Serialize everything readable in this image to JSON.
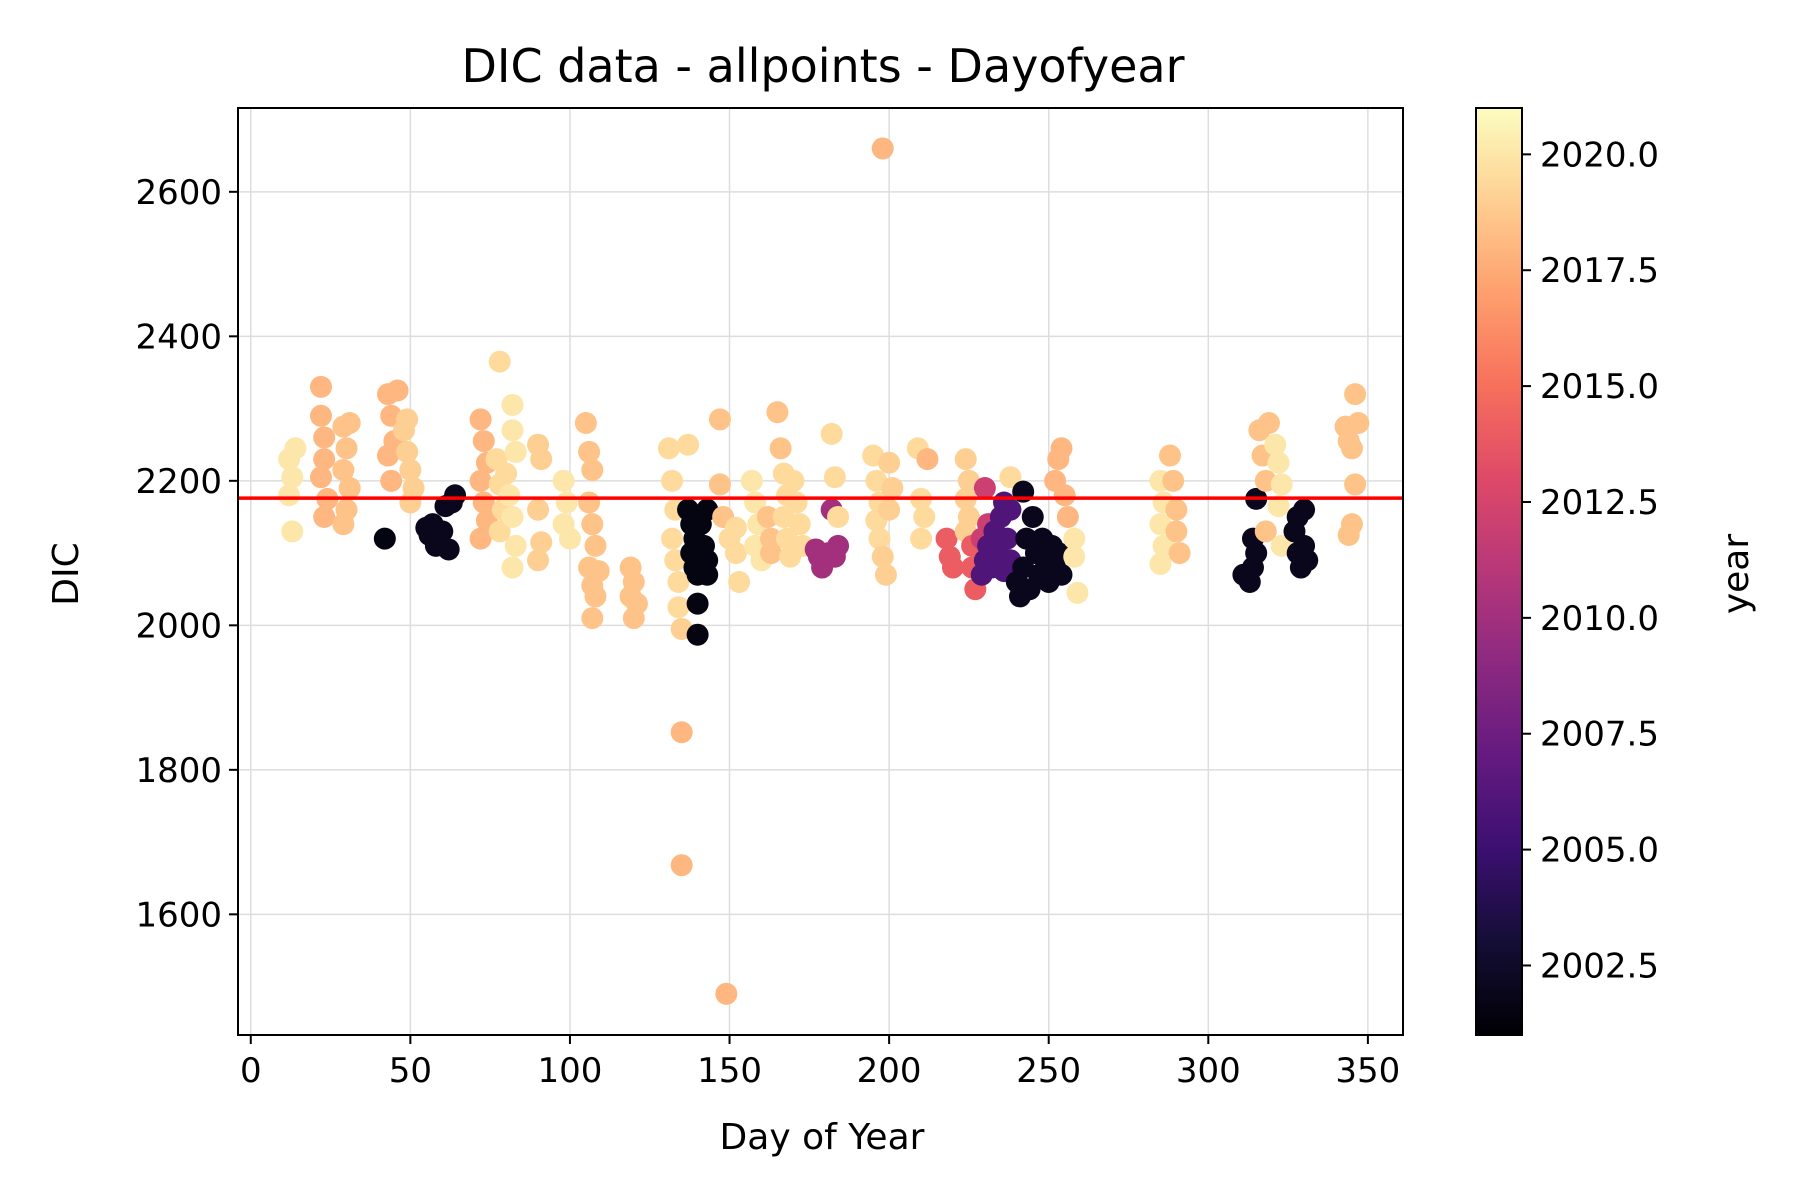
{
  "chart_data": {
    "type": "scatter",
    "title": "DIC data - allpoints - Dayofyear",
    "xlabel": "Day of Year",
    "ylabel": "DIC",
    "xlim": [
      -4,
      361
    ],
    "ylim": [
      1433,
      2716
    ],
    "xticks": [
      0,
      50,
      100,
      150,
      200,
      250,
      300,
      350
    ],
    "yticks": [
      1600,
      1800,
      2000,
      2200,
      2400,
      2600
    ],
    "grid": true,
    "reference_line": {
      "y": 2176,
      "color": "#ff0000"
    },
    "colorbar": {
      "label": "year",
      "colormap": "magma",
      "range": [
        2001,
        2021
      ],
      "ticks": [
        "2002.5",
        "2005.0",
        "2007.5",
        "2010.0",
        "2012.5",
        "2015.0",
        "2017.5",
        "2020.0"
      ]
    },
    "points": [
      {
        "x": 12,
        "y": 2230,
        "c": 2020
      },
      {
        "x": 12,
        "y": 2180,
        "c": 2020
      },
      {
        "x": 13,
        "y": 2130,
        "c": 2020
      },
      {
        "x": 14,
        "y": 2245,
        "c": 2020
      },
      {
        "x": 13,
        "y": 2205,
        "c": 2020
      },
      {
        "x": 22,
        "y": 2330,
        "c": 2018
      },
      {
        "x": 22,
        "y": 2290,
        "c": 2018
      },
      {
        "x": 23,
        "y": 2260,
        "c": 2018
      },
      {
        "x": 23,
        "y": 2230,
        "c": 2018
      },
      {
        "x": 22,
        "y": 2205,
        "c": 2018
      },
      {
        "x": 23,
        "y": 2150,
        "c": 2018
      },
      {
        "x": 24,
        "y": 2175,
        "c": 2018
      },
      {
        "x": 29,
        "y": 2275,
        "c": 2018.5
      },
      {
        "x": 30,
        "y": 2245,
        "c": 2018.5
      },
      {
        "x": 29,
        "y": 2215,
        "c": 2018.5
      },
      {
        "x": 31,
        "y": 2190,
        "c": 2018.5
      },
      {
        "x": 30,
        "y": 2160,
        "c": 2018.5
      },
      {
        "x": 29,
        "y": 2140,
        "c": 2018.5
      },
      {
        "x": 31,
        "y": 2280,
        "c": 2018.5
      },
      {
        "x": 42,
        "y": 2120,
        "c": 2001.5
      },
      {
        "x": 43,
        "y": 2320,
        "c": 2018
      },
      {
        "x": 44,
        "y": 2290,
        "c": 2018
      },
      {
        "x": 45,
        "y": 2255,
        "c": 2018
      },
      {
        "x": 43,
        "y": 2235,
        "c": 2018
      },
      {
        "x": 46,
        "y": 2325,
        "c": 2018
      },
      {
        "x": 44,
        "y": 2200,
        "c": 2018
      },
      {
        "x": 48,
        "y": 2270,
        "c": 2019
      },
      {
        "x": 49,
        "y": 2240,
        "c": 2019
      },
      {
        "x": 50,
        "y": 2215,
        "c": 2019
      },
      {
        "x": 49,
        "y": 2285,
        "c": 2019
      },
      {
        "x": 51,
        "y": 2190,
        "c": 2019
      },
      {
        "x": 50,
        "y": 2170,
        "c": 2019
      },
      {
        "x": 55,
        "y": 2135,
        "c": 2002
      },
      {
        "x": 56,
        "y": 2125,
        "c": 2002
      },
      {
        "x": 57,
        "y": 2140,
        "c": 2002
      },
      {
        "x": 58,
        "y": 2110,
        "c": 2002
      },
      {
        "x": 60,
        "y": 2130,
        "c": 2002
      },
      {
        "x": 61,
        "y": 2165,
        "c": 2002
      },
      {
        "x": 62,
        "y": 2105,
        "c": 2002
      },
      {
        "x": 63,
        "y": 2170,
        "c": 2002
      },
      {
        "x": 64,
        "y": 2180,
        "c": 2002
      },
      {
        "x": 72,
        "y": 2285,
        "c": 2018
      },
      {
        "x": 73,
        "y": 2255,
        "c": 2018
      },
      {
        "x": 74,
        "y": 2225,
        "c": 2018
      },
      {
        "x": 72,
        "y": 2200,
        "c": 2018
      },
      {
        "x": 73,
        "y": 2170,
        "c": 2018
      },
      {
        "x": 74,
        "y": 2145,
        "c": 2018
      },
      {
        "x": 72,
        "y": 2120,
        "c": 2018
      },
      {
        "x": 78,
        "y": 2365,
        "c": 2019.5
      },
      {
        "x": 77,
        "y": 2230,
        "c": 2019.5
      },
      {
        "x": 78,
        "y": 2195,
        "c": 2019.5
      },
      {
        "x": 79,
        "y": 2160,
        "c": 2019.5
      },
      {
        "x": 78,
        "y": 2130,
        "c": 2019.5
      },
      {
        "x": 80,
        "y": 2210,
        "c": 2019.5
      },
      {
        "x": 82,
        "y": 2305,
        "c": 2020
      },
      {
        "x": 82,
        "y": 2270,
        "c": 2020
      },
      {
        "x": 83,
        "y": 2240,
        "c": 2020
      },
      {
        "x": 81,
        "y": 2180,
        "c": 2020
      },
      {
        "x": 82,
        "y": 2150,
        "c": 2020
      },
      {
        "x": 83,
        "y": 2110,
        "c": 2020
      },
      {
        "x": 82,
        "y": 2080,
        "c": 2020
      },
      {
        "x": 90,
        "y": 2250,
        "c": 2019
      },
      {
        "x": 91,
        "y": 2230,
        "c": 2019
      },
      {
        "x": 90,
        "y": 2160,
        "c": 2019
      },
      {
        "x": 91,
        "y": 2115,
        "c": 2019
      },
      {
        "x": 90,
        "y": 2090,
        "c": 2019
      },
      {
        "x": 98,
        "y": 2200,
        "c": 2020
      },
      {
        "x": 99,
        "y": 2170,
        "c": 2020
      },
      {
        "x": 98,
        "y": 2140,
        "c": 2020
      },
      {
        "x": 100,
        "y": 2120,
        "c": 2020
      },
      {
        "x": 105,
        "y": 2280,
        "c": 2018.5
      },
      {
        "x": 106,
        "y": 2240,
        "c": 2018.5
      },
      {
        "x": 107,
        "y": 2215,
        "c": 2018.5
      },
      {
        "x": 106,
        "y": 2170,
        "c": 2018.5
      },
      {
        "x": 107,
        "y": 2140,
        "c": 2018.5
      },
      {
        "x": 108,
        "y": 2110,
        "c": 2018.5
      },
      {
        "x": 106,
        "y": 2080,
        "c": 2018.5
      },
      {
        "x": 107,
        "y": 2055,
        "c": 2018.5
      },
      {
        "x": 108,
        "y": 2040,
        "c": 2018.5
      },
      {
        "x": 107,
        "y": 2010,
        "c": 2018.5
      },
      {
        "x": 109,
        "y": 2075,
        "c": 2018.5
      },
      {
        "x": 119,
        "y": 2080,
        "c": 2018.5
      },
      {
        "x": 120,
        "y": 2060,
        "c": 2018.5
      },
      {
        "x": 119,
        "y": 2040,
        "c": 2018.5
      },
      {
        "x": 120,
        "y": 2010,
        "c": 2018.5
      },
      {
        "x": 121,
        "y": 2030,
        "c": 2018.5
      },
      {
        "x": 131,
        "y": 2245,
        "c": 2019.5
      },
      {
        "x": 132,
        "y": 2200,
        "c": 2019.5
      },
      {
        "x": 133,
        "y": 2160,
        "c": 2019.5
      },
      {
        "x": 132,
        "y": 2120,
        "c": 2019.5
      },
      {
        "x": 133,
        "y": 2090,
        "c": 2019.5
      },
      {
        "x": 134,
        "y": 2060,
        "c": 2019.5
      },
      {
        "x": 134,
        "y": 2025,
        "c": 2019.5
      },
      {
        "x": 135,
        "y": 1995,
        "c": 2019
      },
      {
        "x": 137,
        "y": 2250,
        "c": 2019.5
      },
      {
        "x": 135,
        "y": 1852,
        "c": 2018
      },
      {
        "x": 135,
        "y": 1668,
        "c": 2018
      },
      {
        "x": 137,
        "y": 2160,
        "c": 2001.5
      },
      {
        "x": 138,
        "y": 2140,
        "c": 2001.5
      },
      {
        "x": 139,
        "y": 2120,
        "c": 2001.5
      },
      {
        "x": 138,
        "y": 2100,
        "c": 2001.5
      },
      {
        "x": 139,
        "y": 2080,
        "c": 2001.5
      },
      {
        "x": 140,
        "y": 2070,
        "c": 2001.5
      },
      {
        "x": 140,
        "y": 2030,
        "c": 2001.5
      },
      {
        "x": 140,
        "y": 1987,
        "c": 2001.5
      },
      {
        "x": 143,
        "y": 2160,
        "c": 2001.5
      },
      {
        "x": 142,
        "y": 2110,
        "c": 2001.5
      },
      {
        "x": 143,
        "y": 2090,
        "c": 2001.5
      },
      {
        "x": 141,
        "y": 2140,
        "c": 2001.5
      },
      {
        "x": 143,
        "y": 2070,
        "c": 2001.5
      },
      {
        "x": 147,
        "y": 2285,
        "c": 2018.5
      },
      {
        "x": 147,
        "y": 2195,
        "c": 2018.5
      },
      {
        "x": 148,
        "y": 2150,
        "c": 2018.5
      },
      {
        "x": 149,
        "y": 1490,
        "c": 2018
      },
      {
        "x": 150,
        "y": 2120,
        "c": 2019.5
      },
      {
        "x": 152,
        "y": 2100,
        "c": 2019.5
      },
      {
        "x": 153,
        "y": 2060,
        "c": 2019.5
      },
      {
        "x": 152,
        "y": 2135,
        "c": 2019.5
      },
      {
        "x": 157,
        "y": 2200,
        "c": 2020
      },
      {
        "x": 158,
        "y": 2170,
        "c": 2020
      },
      {
        "x": 159,
        "y": 2140,
        "c": 2020
      },
      {
        "x": 158,
        "y": 2110,
        "c": 2020
      },
      {
        "x": 160,
        "y": 2090,
        "c": 2020
      },
      {
        "x": 162,
        "y": 2150,
        "c": 2018.5
      },
      {
        "x": 163,
        "y": 2120,
        "c": 2018.5
      },
      {
        "x": 163,
        "y": 2100,
        "c": 2018.5
      },
      {
        "x": 165,
        "y": 2295,
        "c": 2018.5
      },
      {
        "x": 166,
        "y": 2245,
        "c": 2018.5
      },
      {
        "x": 167,
        "y": 2210,
        "c": 2019.5
      },
      {
        "x": 168,
        "y": 2180,
        "c": 2019.5
      },
      {
        "x": 167,
        "y": 2150,
        "c": 2019.5
      },
      {
        "x": 168,
        "y": 2120,
        "c": 2019.5
      },
      {
        "x": 169,
        "y": 2095,
        "c": 2019.5
      },
      {
        "x": 170,
        "y": 2200,
        "c": 2019.5
      },
      {
        "x": 171,
        "y": 2170,
        "c": 2019.5
      },
      {
        "x": 172,
        "y": 2140,
        "c": 2019.5
      },
      {
        "x": 173,
        "y": 2110,
        "c": 2019.5
      },
      {
        "x": 177,
        "y": 2105,
        "c": 2010
      },
      {
        "x": 178,
        "y": 2095,
        "c": 2010
      },
      {
        "x": 179,
        "y": 2080,
        "c": 2010
      },
      {
        "x": 181,
        "y": 2100,
        "c": 2010
      },
      {
        "x": 183,
        "y": 2095,
        "c": 2010
      },
      {
        "x": 184,
        "y": 2110,
        "c": 2010
      },
      {
        "x": 182,
        "y": 2160,
        "c": 2010
      },
      {
        "x": 182,
        "y": 2265,
        "c": 2019.5
      },
      {
        "x": 183,
        "y": 2205,
        "c": 2019.5
      },
      {
        "x": 184,
        "y": 2150,
        "c": 2019.5
      },
      {
        "x": 195,
        "y": 2235,
        "c": 2019.5
      },
      {
        "x": 196,
        "y": 2200,
        "c": 2019.5
      },
      {
        "x": 197,
        "y": 2170,
        "c": 2019.5
      },
      {
        "x": 196,
        "y": 2145,
        "c": 2019.5
      },
      {
        "x": 197,
        "y": 2120,
        "c": 2019.5
      },
      {
        "x": 198,
        "y": 2095,
        "c": 2019
      },
      {
        "x": 199,
        "y": 2070,
        "c": 2019
      },
      {
        "x": 198,
        "y": 2660,
        "c": 2018
      },
      {
        "x": 200,
        "y": 2225,
        "c": 2019
      },
      {
        "x": 201,
        "y": 2190,
        "c": 2019
      },
      {
        "x": 200,
        "y": 2160,
        "c": 2019
      },
      {
        "x": 209,
        "y": 2245,
        "c": 2019.5
      },
      {
        "x": 210,
        "y": 2175,
        "c": 2019.5
      },
      {
        "x": 211,
        "y": 2150,
        "c": 2019.5
      },
      {
        "x": 210,
        "y": 2120,
        "c": 2019.5
      },
      {
        "x": 212,
        "y": 2230,
        "c": 2018
      },
      {
        "x": 218,
        "y": 2120,
        "c": 2014
      },
      {
        "x": 219,
        "y": 2095,
        "c": 2014
      },
      {
        "x": 220,
        "y": 2080,
        "c": 2014
      },
      {
        "x": 224,
        "y": 2230,
        "c": 2019
      },
      {
        "x": 225,
        "y": 2200,
        "c": 2019
      },
      {
        "x": 224,
        "y": 2175,
        "c": 2019
      },
      {
        "x": 225,
        "y": 2150,
        "c": 2019
      },
      {
        "x": 224,
        "y": 2130,
        "c": 2019
      },
      {
        "x": 226,
        "y": 2110,
        "c": 2014
      },
      {
        "x": 226,
        "y": 2080,
        "c": 2014
      },
      {
        "x": 227,
        "y": 2050,
        "c": 2014
      },
      {
        "x": 229,
        "y": 2120,
        "c": 2012
      },
      {
        "x": 230,
        "y": 2190,
        "c": 2012
      },
      {
        "x": 231,
        "y": 2140,
        "c": 2012
      },
      {
        "x": 229,
        "y": 2070,
        "c": 2006
      },
      {
        "x": 230,
        "y": 2090,
        "c": 2006
      },
      {
        "x": 231,
        "y": 2110,
        "c": 2006
      },
      {
        "x": 232,
        "y": 2080,
        "c": 2006
      },
      {
        "x": 233,
        "y": 2130,
        "c": 2006
      },
      {
        "x": 234,
        "y": 2100,
        "c": 2006
      },
      {
        "x": 235,
        "y": 2150,
        "c": 2006
      },
      {
        "x": 236,
        "y": 2075,
        "c": 2006
      },
      {
        "x": 236,
        "y": 2170,
        "c": 2006
      },
      {
        "x": 237,
        "y": 2120,
        "c": 2006
      },
      {
        "x": 238,
        "y": 2090,
        "c": 2006
      },
      {
        "x": 238,
        "y": 2160,
        "c": 2006
      },
      {
        "x": 238,
        "y": 2205,
        "c": 2019.5
      },
      {
        "x": 240,
        "y": 2060,
        "c": 2002
      },
      {
        "x": 241,
        "y": 2040,
        "c": 2002
      },
      {
        "x": 242,
        "y": 2080,
        "c": 2002
      },
      {
        "x": 242,
        "y": 2185,
        "c": 2002
      },
      {
        "x": 243,
        "y": 2120,
        "c": 2002
      },
      {
        "x": 244,
        "y": 2050,
        "c": 2002
      },
      {
        "x": 245,
        "y": 2150,
        "c": 2002
      },
      {
        "x": 246,
        "y": 2100,
        "c": 2002
      },
      {
        "x": 247,
        "y": 2070,
        "c": 2002
      },
      {
        "x": 248,
        "y": 2120,
        "c": 2002
      },
      {
        "x": 249,
        "y": 2090,
        "c": 2002
      },
      {
        "x": 250,
        "y": 2060,
        "c": 2002
      },
      {
        "x": 251,
        "y": 2110,
        "c": 2002
      },
      {
        "x": 252,
        "y": 2080,
        "c": 2002
      },
      {
        "x": 253,
        "y": 2100,
        "c": 2002
      },
      {
        "x": 254,
        "y": 2070,
        "c": 2002
      },
      {
        "x": 252,
        "y": 2200,
        "c": 2018
      },
      {
        "x": 253,
        "y": 2230,
        "c": 2018
      },
      {
        "x": 254,
        "y": 2245,
        "c": 2018
      },
      {
        "x": 255,
        "y": 2180,
        "c": 2018
      },
      {
        "x": 256,
        "y": 2150,
        "c": 2018
      },
      {
        "x": 258,
        "y": 2120,
        "c": 2020
      },
      {
        "x": 258,
        "y": 2095,
        "c": 2020
      },
      {
        "x": 259,
        "y": 2045,
        "c": 2020
      },
      {
        "x": 285,
        "y": 2200,
        "c": 2020
      },
      {
        "x": 286,
        "y": 2170,
        "c": 2020
      },
      {
        "x": 285,
        "y": 2140,
        "c": 2020
      },
      {
        "x": 286,
        "y": 2110,
        "c": 2020
      },
      {
        "x": 285,
        "y": 2085,
        "c": 2020
      },
      {
        "x": 288,
        "y": 2235,
        "c": 2018.5
      },
      {
        "x": 289,
        "y": 2200,
        "c": 2018.5
      },
      {
        "x": 290,
        "y": 2160,
        "c": 2018.5
      },
      {
        "x": 290,
        "y": 2130,
        "c": 2018.5
      },
      {
        "x": 291,
        "y": 2100,
        "c": 2018.5
      },
      {
        "x": 311,
        "y": 2070,
        "c": 2002
      },
      {
        "x": 313,
        "y": 2060,
        "c": 2002
      },
      {
        "x": 314,
        "y": 2120,
        "c": 2002
      },
      {
        "x": 314,
        "y": 2080,
        "c": 2002
      },
      {
        "x": 315,
        "y": 2100,
        "c": 2002
      },
      {
        "x": 315,
        "y": 2175,
        "c": 2002
      },
      {
        "x": 316,
        "y": 2270,
        "c": 2018.5
      },
      {
        "x": 317,
        "y": 2235,
        "c": 2018.5
      },
      {
        "x": 318,
        "y": 2200,
        "c": 2018.5
      },
      {
        "x": 319,
        "y": 2280,
        "c": 2018.5
      },
      {
        "x": 318,
        "y": 2130,
        "c": 2018.5
      },
      {
        "x": 321,
        "y": 2250,
        "c": 2020
      },
      {
        "x": 322,
        "y": 2225,
        "c": 2020
      },
      {
        "x": 323,
        "y": 2195,
        "c": 2020
      },
      {
        "x": 322,
        "y": 2165,
        "c": 2020
      },
      {
        "x": 323,
        "y": 2110,
        "c": 2020
      },
      {
        "x": 327,
        "y": 2130,
        "c": 2002
      },
      {
        "x": 328,
        "y": 2100,
        "c": 2002
      },
      {
        "x": 329,
        "y": 2080,
        "c": 2002
      },
      {
        "x": 328,
        "y": 2150,
        "c": 2002
      },
      {
        "x": 330,
        "y": 2110,
        "c": 2002
      },
      {
        "x": 330,
        "y": 2160,
        "c": 2002
      },
      {
        "x": 331,
        "y": 2090,
        "c": 2002
      },
      {
        "x": 343,
        "y": 2275,
        "c": 2018.5
      },
      {
        "x": 344,
        "y": 2255,
        "c": 2018.5
      },
      {
        "x": 345,
        "y": 2245,
        "c": 2018.5
      },
      {
        "x": 346,
        "y": 2320,
        "c": 2018.5
      },
      {
        "x": 346,
        "y": 2195,
        "c": 2018.5
      },
      {
        "x": 345,
        "y": 2140,
        "c": 2018.5
      },
      {
        "x": 344,
        "y": 2125,
        "c": 2018.5
      },
      {
        "x": 347,
        "y": 2280,
        "c": 2018.5
      }
    ]
  }
}
